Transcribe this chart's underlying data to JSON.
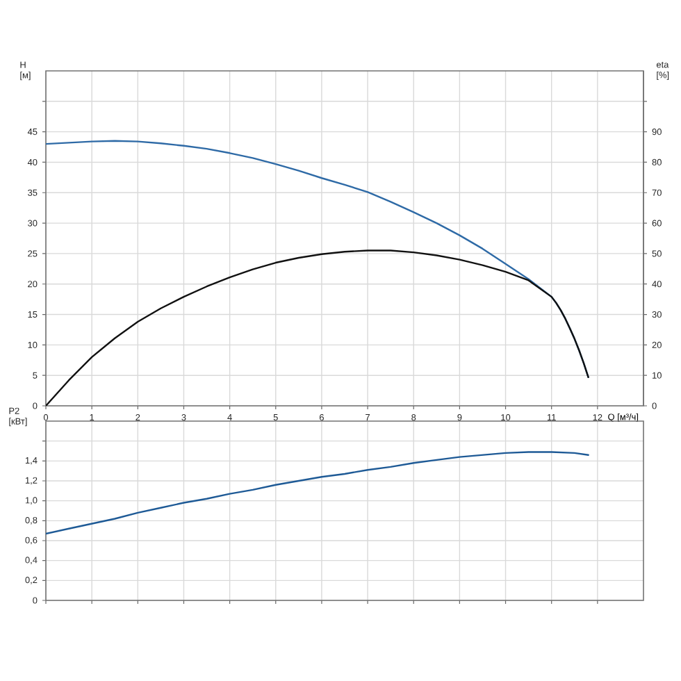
{
  "chart_data": [
    {
      "type": "line",
      "xlabel": "Q [м³/ч]",
      "ylabel": "H [м]",
      "y2label": "eta [%]",
      "xlim": [
        0,
        13
      ],
      "xticks": [
        0,
        1,
        2,
        3,
        4,
        5,
        6,
        7,
        8,
        9,
        10,
        11,
        12
      ],
      "ylim": [
        0,
        55
      ],
      "yticks": [
        0,
        5,
        10,
        15,
        20,
        25,
        30,
        35,
        40,
        45,
        {
          "value": 50,
          "label": null
        }
      ],
      "y2lim": [
        0,
        110
      ],
      "y2ticks": [
        0,
        10,
        20,
        30,
        40,
        50,
        60,
        70,
        80,
        90,
        {
          "value": 100,
          "label": null
        }
      ],
      "grid": true,
      "series": [
        {
          "color": "#2e6aa6",
          "x": [
            0,
            0.5,
            1,
            1.5,
            2,
            2.5,
            3,
            3.5,
            4,
            4.5,
            5,
            5.5,
            6,
            6.5,
            7,
            7.5,
            8,
            8.5,
            9,
            9.5,
            10,
            10.5,
            11,
            11.1,
            11.2,
            11.3,
            11.4,
            11.5,
            11.6,
            11.7,
            11.8
          ],
          "values": [
            43.0,
            43.2,
            43.4,
            43.5,
            43.4,
            43.1,
            42.7,
            42.2,
            41.5,
            40.7,
            39.7,
            38.6,
            37.4,
            36.3,
            35.1,
            33.5,
            31.8,
            30.0,
            28.0,
            25.8,
            23.3,
            20.8,
            17.9,
            16.9,
            15.7,
            14.3,
            12.7,
            11.0,
            9.1,
            7.0,
            4.7
          ]
        },
        {
          "color": "#111111",
          "axis": "y2",
          "x": [
            0,
            0.5,
            1,
            1.5,
            2,
            2.5,
            3,
            3.5,
            4,
            4.5,
            5,
            5.5,
            6,
            6.5,
            7,
            7.5,
            8,
            8.5,
            9,
            9.5,
            10,
            10.5,
            11,
            11.1,
            11.2,
            11.3,
            11.4,
            11.5,
            11.6,
            11.7,
            11.8
          ],
          "values": [
            0,
            8.4,
            16.0,
            22.2,
            27.6,
            32.0,
            35.8,
            39.2,
            42.2,
            44.8,
            47.0,
            48.6,
            49.8,
            50.6,
            51.0,
            51.0,
            50.4,
            49.4,
            48.0,
            46.2,
            44.0,
            41.2,
            35.8,
            33.8,
            31.4,
            28.6,
            25.4,
            22.0,
            18.2,
            14.0,
            9.4
          ]
        }
      ]
    },
    {
      "type": "line",
      "ylabel": "P2 [кВт]",
      "tick_labels": "y",
      "xlim": [
        0,
        13
      ],
      "xticks": [
        0,
        1,
        2,
        3,
        4,
        5,
        6,
        7,
        8,
        9,
        10,
        11,
        12
      ],
      "ylim": [
        0,
        1.8
      ],
      "yticks": [
        0,
        {
          "value": 0.2,
          "label": "0,2"
        },
        {
          "value": 0.4,
          "label": "0,4"
        },
        {
          "value": 0.6,
          "label": "0,6"
        },
        {
          "value": 0.8,
          "label": "0,8"
        },
        {
          "value": 1.0,
          "label": "1,0"
        },
        {
          "value": 1.2,
          "label": "1,2"
        },
        {
          "value": 1.4,
          "label": "1,4"
        },
        {
          "value": 1.6,
          "label": null
        }
      ],
      "grid": true,
      "series": [
        {
          "color": "#1e5a96",
          "x": [
            0,
            0.5,
            1,
            1.5,
            2,
            2.5,
            3,
            3.5,
            4,
            4.5,
            5,
            5.5,
            6,
            6.5,
            7,
            7.5,
            8,
            8.5,
            9,
            9.5,
            10,
            10.5,
            11,
            11.5,
            11.8
          ],
          "values": [
            0.67,
            0.72,
            0.77,
            0.82,
            0.88,
            0.93,
            0.98,
            1.02,
            1.07,
            1.11,
            1.16,
            1.2,
            1.24,
            1.27,
            1.31,
            1.34,
            1.38,
            1.41,
            1.44,
            1.46,
            1.48,
            1.49,
            1.49,
            1.48,
            1.46
          ]
        }
      ]
    }
  ]
}
